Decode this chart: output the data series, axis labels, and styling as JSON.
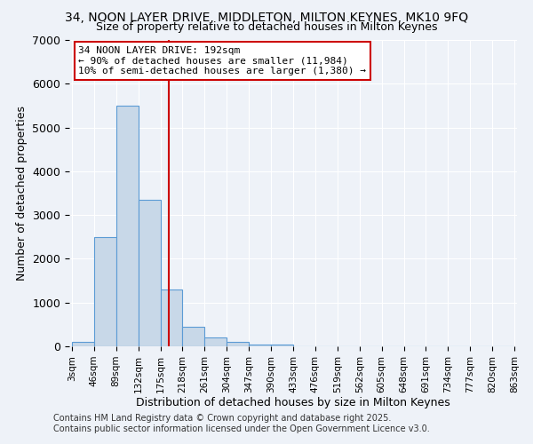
{
  "title": "34, NOON LAYER DRIVE, MIDDLETON, MILTON KEYNES, MK10 9FQ",
  "subtitle": "Size of property relative to detached houses in Milton Keynes",
  "xlabel": "Distribution of detached houses by size in Milton Keynes",
  "ylabel": "Number of detached properties",
  "bin_edges": [
    3,
    46,
    89,
    132,
    175,
    218,
    261,
    304,
    347,
    390,
    433,
    476,
    519,
    562,
    605,
    648,
    691,
    734,
    777,
    820,
    863
  ],
  "bar_heights": [
    100,
    2500,
    5500,
    3350,
    1300,
    450,
    200,
    100,
    50,
    50,
    0,
    0,
    0,
    0,
    0,
    0,
    0,
    0,
    0,
    0
  ],
  "bar_color": "#c8d8e8",
  "bar_edge_color": "#5b9bd5",
  "property_size": 192,
  "vline_color": "#cc0000",
  "annotation_line1": "34 NOON LAYER DRIVE: 192sqm",
  "annotation_line2": "← 90% of detached houses are smaller (11,984)",
  "annotation_line3": "10% of semi-detached houses are larger (1,380) →",
  "annotation_box_color": "#ffffff",
  "annotation_box_edge": "#cc0000",
  "ylim": [
    0,
    7000
  ],
  "yticks": [
    0,
    1000,
    2000,
    3000,
    4000,
    5000,
    6000,
    7000
  ],
  "bg_color": "#eef2f8",
  "grid_color": "#ffffff",
  "footer1": "Contains HM Land Registry data © Crown copyright and database right 2025.",
  "footer2": "Contains public sector information licensed under the Open Government Licence v3.0.",
  "title_fontsize": 10,
  "subtitle_fontsize": 9,
  "axis_label_fontsize": 9,
  "tick_label_fontsize": 7.5,
  "annotation_fontsize": 8,
  "footer_fontsize": 7
}
